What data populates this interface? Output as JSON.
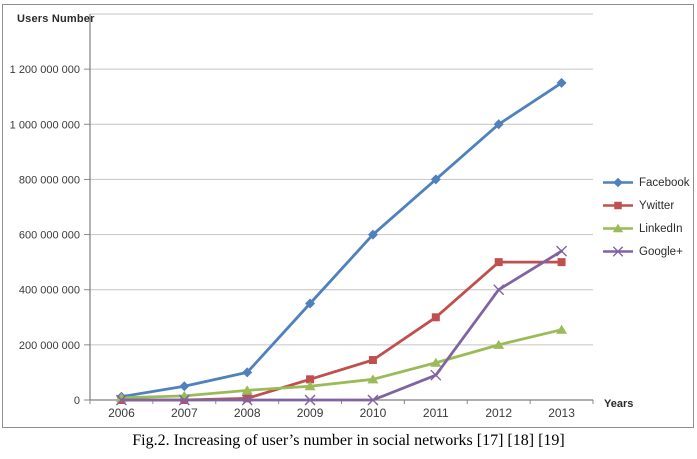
{
  "figure": {
    "caption": "Fig.2. Increasing of user’s number in social networks [17] [18] [19]"
  },
  "chart_data": {
    "type": "line",
    "title": "",
    "ylabel": "Users Number",
    "xlabel": "Years",
    "categories": [
      "2006",
      "2007",
      "2008",
      "2009",
      "2010",
      "2011",
      "2012",
      "2013"
    ],
    "ylim": [
      0,
      1400000000
    ],
    "grid": true,
    "legend_position": "right",
    "yticks": [
      {
        "value": 0,
        "label": "0"
      },
      {
        "value": 200000000,
        "label": "200 000 000"
      },
      {
        "value": 400000000,
        "label": "400 000 000"
      },
      {
        "value": 600000000,
        "label": "600 000 000"
      },
      {
        "value": 800000000,
        "label": "800 000 000"
      },
      {
        "value": 1000000000,
        "label": "1 000 000 000"
      },
      {
        "value": 1200000000,
        "label": "1 200 000 000"
      }
    ],
    "series": [
      {
        "name": "Facebook",
        "color": "#4F81BD",
        "marker": "diamond",
        "values": [
          12000000,
          50000000,
          100000000,
          350000000,
          600000000,
          800000000,
          1000000000,
          1150000000
        ]
      },
      {
        "name": "Ywitter",
        "color": "#C0504D",
        "marker": "square",
        "values": [
          0,
          0,
          6000000,
          75000000,
          145000000,
          300000000,
          500000000,
          500000000
        ]
      },
      {
        "name": "LinkedIn",
        "color": "#9BBB59",
        "marker": "triangle",
        "values": [
          8000000,
          15000000,
          35000000,
          50000000,
          75000000,
          135000000,
          200000000,
          255000000
        ]
      },
      {
        "name": "Google+",
        "color": "#8064A2",
        "marker": "x",
        "values": [
          0,
          0,
          0,
          0,
          0,
          90000000,
          400000000,
          540000000
        ]
      }
    ]
  }
}
